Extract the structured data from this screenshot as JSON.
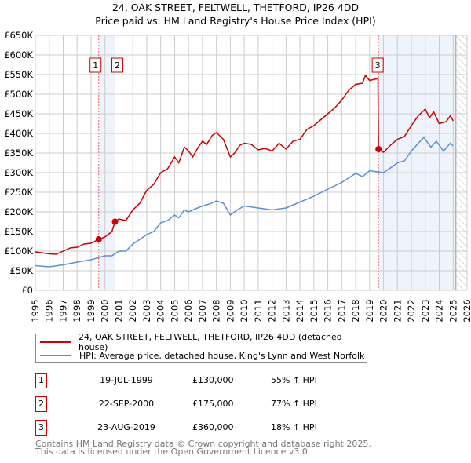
{
  "title": "24, OAK STREET, FELTWELL, THETFORD, IP26 4DD",
  "subtitle": "Price paid vs. HM Land Registry's House Price Index (HPI)",
  "chart_data": {
    "type": "line",
    "title": "24, OAK STREET, FELTWELL, THETFORD, IP26 4DD",
    "subtitle": "Price paid vs. HM Land Registry's House Price Index (HPI)",
    "xlim": [
      1995,
      2026
    ],
    "ylim": [
      0,
      650000
    ],
    "grid": true,
    "xticks": [
      1995,
      1996,
      1997,
      1998,
      1999,
      2000,
      2001,
      2002,
      2003,
      2004,
      2005,
      2006,
      2007,
      2008,
      2009,
      2010,
      2011,
      2012,
      2013,
      2014,
      2015,
      2016,
      2017,
      2018,
      2019,
      2020,
      2021,
      2022,
      2023,
      2024,
      2025,
      2026
    ],
    "yticks": [
      0,
      50000,
      100000,
      150000,
      200000,
      250000,
      300000,
      350000,
      400000,
      450000,
      500000,
      550000,
      600000,
      650000
    ],
    "ytick_labels": [
      "£0",
      "£50K",
      "£100K",
      "£150K",
      "£200K",
      "£250K",
      "£300K",
      "£350K",
      "£400K",
      "£450K",
      "£500K",
      "£550K",
      "£600K",
      "£650K"
    ],
    "shaded_ranges": [
      [
        1999.55,
        2000.73
      ],
      [
        2019.64,
        2025.2
      ]
    ],
    "forecast_hatch_from": 2025.2,
    "series": [
      {
        "name": "24, OAK STREET, FELTWELL, THETFORD, IP26 4DD (detached house)",
        "color": "#cc0000",
        "x": [
          1995,
          1996,
          1996.5,
          1997,
          1997.5,
          1998,
          1998.5,
          1999,
          1999.55,
          2000,
          2000.5,
          2000.72,
          2001,
          2001.5,
          2002,
          2002.5,
          2003,
          2003.5,
          2004,
          2004.5,
          2005,
          2005.3,
          2005.7,
          2006,
          2006.3,
          2006.7,
          2007,
          2007.3,
          2007.7,
          2008,
          2008.5,
          2009,
          2009.3,
          2009.7,
          2010,
          2010.5,
          2011,
          2011.5,
          2012,
          2012.5,
          2013,
          2013.5,
          2014,
          2014.5,
          2015,
          2015.5,
          2016,
          2016.5,
          2017,
          2017.5,
          2018,
          2018.5,
          2018.7,
          2019,
          2019.6,
          2019.64,
          2020,
          2020.5,
          2021,
          2021.5,
          2022,
          2022.5,
          2023,
          2023.3,
          2023.6,
          2024,
          2024.5,
          2024.8,
          2025
        ],
        "y": [
          98000,
          93000,
          92000,
          100000,
          108000,
          110000,
          118000,
          120000,
          130000,
          136000,
          150000,
          175000,
          182000,
          178000,
          205000,
          222000,
          255000,
          270000,
          300000,
          310000,
          340000,
          325000,
          365000,
          355000,
          340000,
          365000,
          380000,
          372000,
          395000,
          402000,
          385000,
          340000,
          350000,
          370000,
          375000,
          372000,
          358000,
          362000,
          355000,
          375000,
          360000,
          380000,
          385000,
          410000,
          420000,
          435000,
          450000,
          465000,
          485000,
          510000,
          525000,
          528000,
          548000,
          535000,
          540000,
          360000,
          352000,
          370000,
          385000,
          392000,
          420000,
          445000,
          462000,
          440000,
          455000,
          425000,
          430000,
          445000,
          432000
        ]
      },
      {
        "name": "HPI: Average price, detached house, King's Lynn and West Norfolk",
        "color": "#5b8fd1",
        "x": [
          1995,
          1996,
          1997,
          1998,
          1999,
          2000,
          2000.5,
          2001,
          2001.5,
          2002,
          2003,
          2003.5,
          2004,
          2004.5,
          2005,
          2005.3,
          2005.7,
          2006,
          2006.5,
          2007,
          2007.5,
          2008,
          2008.5,
          2009,
          2009.5,
          2010,
          2011,
          2012,
          2013,
          2014,
          2015,
          2016,
          2017,
          2018,
          2018.5,
          2019,
          2019.6,
          2020,
          2020.5,
          2021,
          2021.5,
          2022,
          2022.5,
          2022.9,
          2023.4,
          2023.8,
          2024.3,
          2024.8,
          2025
        ],
        "y": [
          63000,
          60000,
          65000,
          72000,
          78000,
          88000,
          88000,
          100000,
          100000,
          118000,
          142000,
          150000,
          172000,
          178000,
          192000,
          185000,
          205000,
          200000,
          208000,
          215000,
          220000,
          228000,
          222000,
          192000,
          205000,
          215000,
          210000,
          205000,
          210000,
          225000,
          240000,
          258000,
          275000,
          298000,
          290000,
          305000,
          302000,
          300000,
          312000,
          325000,
          330000,
          355000,
          375000,
          390000,
          365000,
          380000,
          355000,
          375000,
          368000
        ]
      }
    ],
    "sales": [
      {
        "id": "1",
        "date": "19-JUL-1999",
        "x": 1999.55,
        "price": 130000,
        "price_label": "£130,000",
        "pct": "55% ↑ HPI"
      },
      {
        "id": "2",
        "date": "22-SEP-2000",
        "x": 2000.72,
        "price": 175000,
        "price_label": "£175,000",
        "pct": "77% ↑ HPI"
      },
      {
        "id": "3",
        "date": "23-AUG-2019",
        "x": 2019.64,
        "price": 360000,
        "price_label": "£360,000",
        "pct": "18% ↑ HPI"
      }
    ]
  },
  "legend": {
    "property": "24, OAK STREET, FELTWELL, THETFORD, IP26 4DD (detached house)",
    "hpi": "HPI: Average price, detached house, King's Lynn and West Norfolk"
  },
  "footer": {
    "line1": "Contains HM Land Registry data © Crown copyright and database right 2025.",
    "line2": "This data is licensed under the Open Government Licence v3.0."
  }
}
